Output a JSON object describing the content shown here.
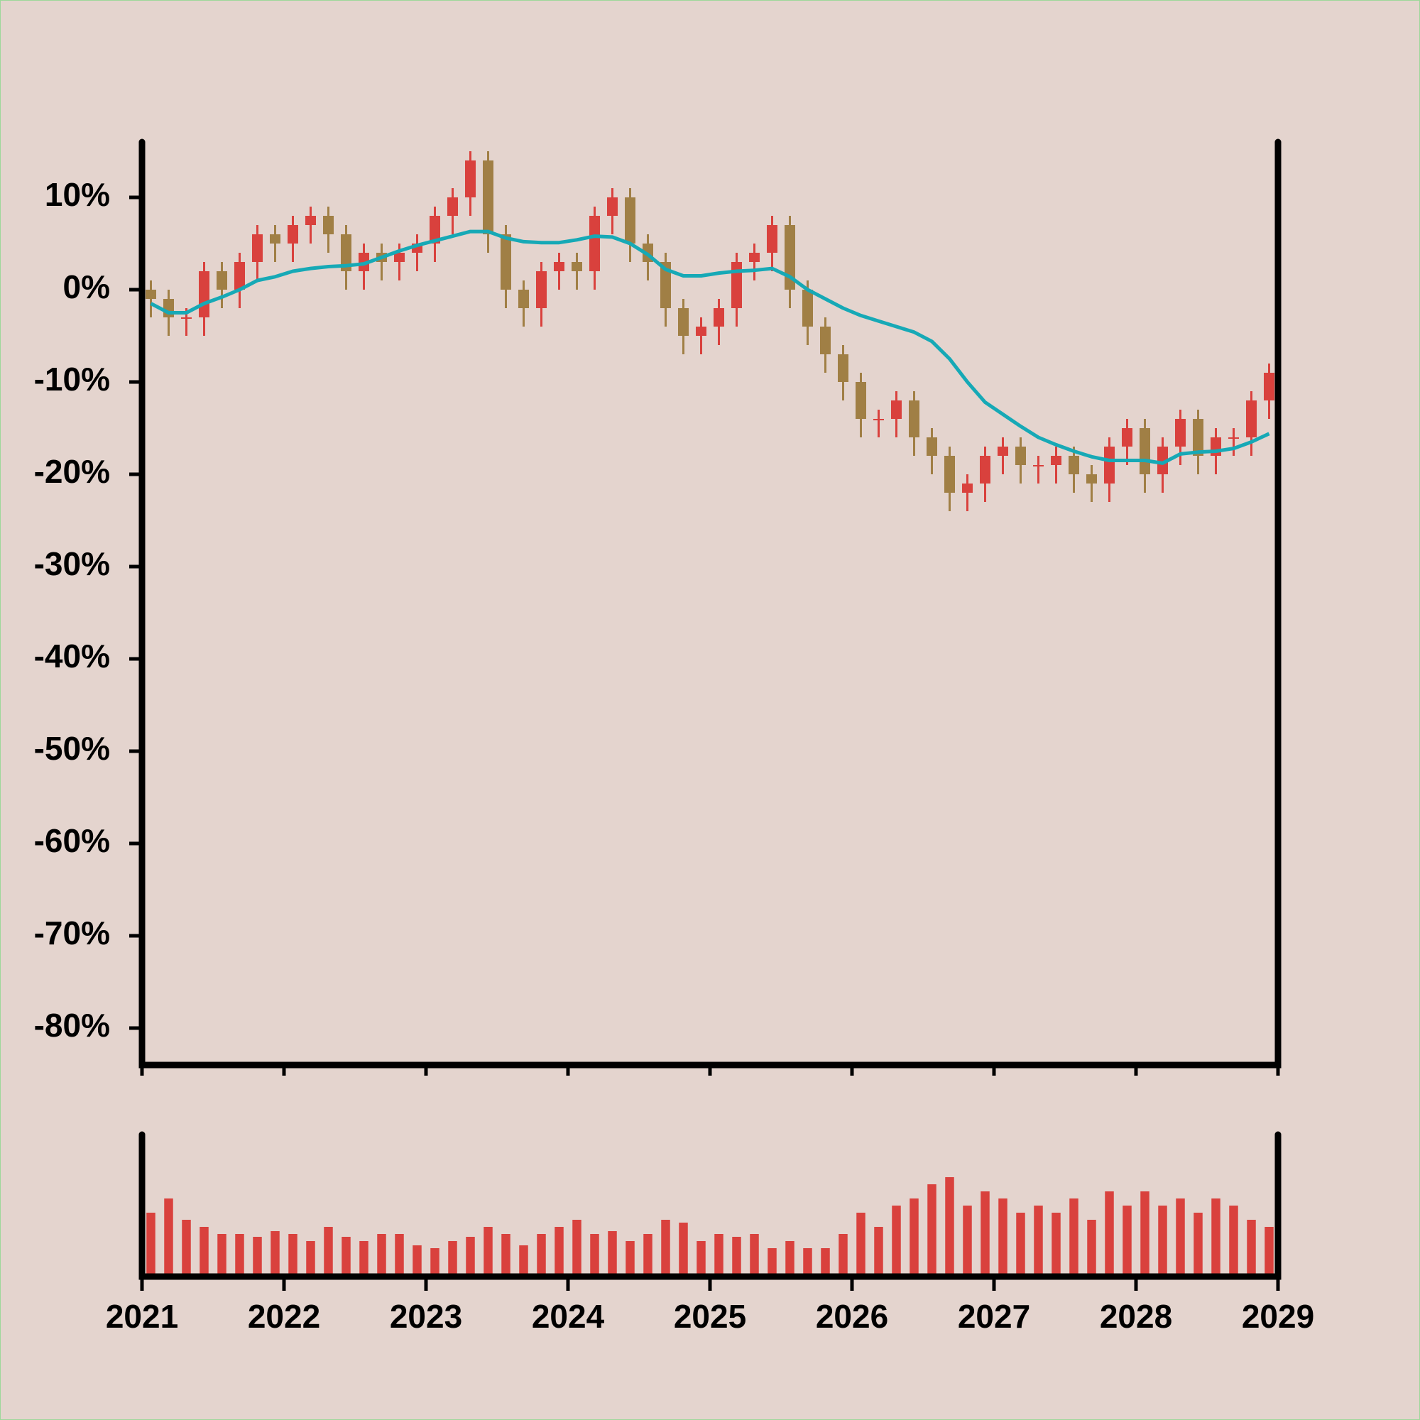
{
  "chart_data": {
    "type": "candlestick",
    "x": [
      2021.0625,
      2021.1875,
      2021.3125,
      2021.4375,
      2021.5625,
      2021.6875,
      2021.8125,
      2021.9375,
      2022.0625,
      2022.1875,
      2022.3125,
      2022.4375,
      2022.5625,
      2022.6875,
      2022.8125,
      2022.9375,
      2023.0625,
      2023.1875,
      2023.3125,
      2023.4375,
      2023.5625,
      2023.6875,
      2023.8125,
      2023.9375,
      2024.0625,
      2024.1875,
      2024.3125,
      2024.4375,
      2024.5625,
      2024.6875,
      2024.8125,
      2024.9375,
      2025.0625,
      2025.1875,
      2025.3125,
      2025.4375,
      2025.5625,
      2025.6875,
      2025.8125,
      2025.9375,
      2026.0625,
      2026.1875,
      2026.3125,
      2026.4375,
      2026.5625,
      2026.6875,
      2026.8125,
      2026.9375,
      2027.0625,
      2027.1875,
      2027.3125,
      2027.4375,
      2027.5625,
      2027.6875,
      2027.8125,
      2027.9375,
      2028.0625,
      2028.1875,
      2028.3125,
      2028.4375,
      2028.5625,
      2028.6875,
      2028.8125,
      2028.9375
    ],
    "open": [
      0,
      -1,
      -3,
      -3,
      2,
      0,
      3,
      6,
      5,
      7,
      8,
      6,
      2,
      4,
      3,
      4,
      5,
      8,
      10,
      14,
      6,
      0,
      -2,
      2,
      3,
      2,
      8,
      10,
      5,
      3,
      -2,
      -5,
      -4,
      -2,
      3,
      4,
      7,
      0,
      -4,
      -7,
      -10,
      -14,
      -14,
      -12,
      -16,
      -18,
      -22,
      -21,
      -18,
      -17,
      -19,
      -19,
      -18,
      -20,
      -21,
      -17,
      -15,
      -20,
      -17,
      -14,
      -18,
      -16,
      -16,
      -12
    ],
    "high": [
      1,
      0,
      -2,
      3,
      3,
      4,
      7,
      7,
      8,
      9,
      9,
      7,
      5,
      5,
      5,
      6,
      9,
      11,
      15,
      15,
      7,
      1,
      3,
      4,
      4,
      9,
      11,
      11,
      6,
      4,
      -1,
      -3,
      -1,
      4,
      5,
      8,
      8,
      1,
      -3,
      -6,
      -9,
      -13,
      -11,
      -11,
      -15,
      -17,
      -20,
      -17,
      -16,
      -16,
      -18,
      -17,
      -17,
      -19,
      -16,
      -14,
      -14,
      -16,
      -13,
      -13,
      -15,
      -15,
      -11,
      -8
    ],
    "low": [
      -3,
      -5,
      -5,
      -5,
      -2,
      -2,
      1,
      3,
      3,
      5,
      4,
      0,
      0,
      1,
      1,
      2,
      3,
      6,
      8,
      4,
      -2,
      -4,
      -4,
      0,
      0,
      0,
      6,
      3,
      1,
      -4,
      -7,
      -7,
      -6,
      -4,
      1,
      2,
      -2,
      -6,
      -9,
      -12,
      -16,
      -16,
      -16,
      -18,
      -20,
      -24,
      -24,
      -23,
      -20,
      -21,
      -21,
      -21,
      -22,
      -23,
      -23,
      -19,
      -22,
      -22,
      -19,
      -20,
      -20,
      -18,
      -18,
      -14
    ],
    "close": [
      -1,
      -3,
      -3,
      2,
      0,
      3,
      6,
      5,
      7,
      8,
      6,
      2,
      4,
      3,
      4,
      5,
      8,
      10,
      14,
      6,
      0,
      -2,
      2,
      3,
      2,
      8,
      10,
      5,
      3,
      -2,
      -5,
      -4,
      -2,
      3,
      4,
      7,
      0,
      -4,
      -7,
      -10,
      -14,
      -14,
      -12,
      -16,
      -18,
      -22,
      -21,
      -18,
      -17,
      -19,
      -19,
      -18,
      -20,
      -21,
      -17,
      -15,
      -20,
      -17,
      -14,
      -18,
      -16,
      -16,
      -12,
      -9
    ],
    "ma": [
      -1.5,
      -2.5,
      -2.5,
      -1.5,
      -0.8,
      0,
      1,
      1.4,
      2,
      2.3,
      2.5,
      2.6,
      2.8,
      3.5,
      4.2,
      4.8,
      5.3,
      5.8,
      6.3,
      6.3,
      5.6,
      5.2,
      5.1,
      5.1,
      5.4,
      5.8,
      5.7,
      5.0,
      3.8,
      2.2,
      1.5,
      1.5,
      1.8,
      2,
      2.1,
      2.3,
      1.4,
      0,
      -1,
      -2,
      -2.8,
      -3.4,
      -4,
      -4.6,
      -5.6,
      -7.5,
      -10,
      -12.2,
      -13.5,
      -14.8,
      -16,
      -16.8,
      -17.5,
      -18.1,
      -18.5,
      -18.5,
      -18.5,
      -18.8,
      -17.8,
      -17.6,
      -17.5,
      -17.2,
      -16.5,
      -15.6
    ],
    "volume": [
      45,
      55,
      40,
      35,
      30,
      30,
      28,
      32,
      30,
      25,
      35,
      28,
      25,
      30,
      30,
      22,
      20,
      25,
      28,
      35,
      30,
      22,
      30,
      35,
      40,
      30,
      32,
      25,
      30,
      40,
      38,
      25,
      30,
      28,
      30,
      20,
      25,
      20,
      20,
      30,
      45,
      35,
      50,
      55,
      65,
      70,
      50,
      60,
      55,
      45,
      50,
      45,
      55,
      40,
      60,
      50,
      60,
      50,
      55,
      45,
      55,
      50,
      40,
      35
    ],
    "volume_ylim": [
      0,
      100
    ],
    "up_color": "#d9413d",
    "down_color": "#a07f45",
    "ma_color": "#16a9b6",
    "volume_color": "#d9413d",
    "xlim": [
      2021,
      2029
    ],
    "xticks": [
      2021,
      2022,
      2023,
      2024,
      2025,
      2026,
      2027,
      2028,
      2029
    ],
    "ylim": [
      -84,
      16
    ],
    "yticks": [
      {
        "value": 10,
        "label": "10%"
      },
      {
        "value": 0,
        "label": "0%"
      },
      {
        "value": -10,
        "label": "-10%"
      },
      {
        "value": -20,
        "label": "-20%"
      },
      {
        "value": -30,
        "label": "-30%"
      },
      {
        "value": -40,
        "label": "-40%"
      },
      {
        "value": -50,
        "label": "-50%"
      },
      {
        "value": -60,
        "label": "-60%"
      },
      {
        "value": -70,
        "label": "-70%"
      },
      {
        "value": -80,
        "label": "-80%"
      }
    ]
  }
}
